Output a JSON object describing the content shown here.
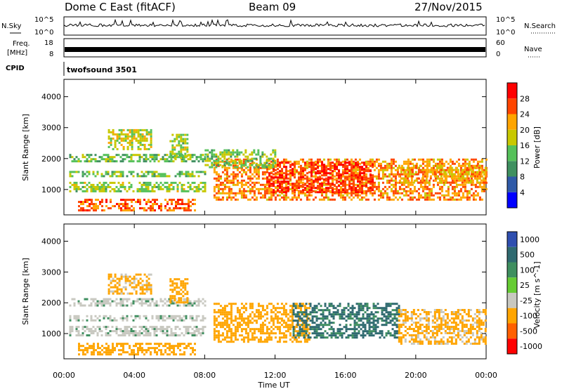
{
  "header": {
    "title": "Dome C East (fitACF)",
    "beam": "Beam 09",
    "date": "27/Nov/2015"
  },
  "top_panels": {
    "nsky_label": "N.Sky",
    "nsearch_label": "N.Search",
    "nsky_ticks": [
      "10^5",
      "10^0"
    ],
    "nsearch_ticks": [
      "10^5",
      "10^0"
    ],
    "freq_label_line1": "Freq.",
    "freq_label_line2": "[MHz]",
    "freq_ticks": [
      "18",
      "8"
    ],
    "nave_label": "Nave",
    "nave_ticks": [
      "60",
      "0"
    ],
    "cpid_label": "CPID",
    "cpid_value": "twofsound 3501"
  },
  "colors": {
    "power": [
      "#0000ff",
      "#2f5aa8",
      "#3f9060",
      "#55c15a",
      "#c8c800",
      "#ffa500",
      "#ff4500",
      "#ff0000"
    ],
    "velocity": [
      "#2f4fb0",
      "#2f6a70",
      "#3f8f60",
      "#66cc33",
      "#c8c8c0",
      "#ffa500",
      "#ff6000",
      "#ff0000"
    ],
    "ground_scatter": "#bbbbbb"
  },
  "chart_data": [
    {
      "type": "heatmap",
      "title": "",
      "xlabel": "Time UT",
      "ylabel": "Slant Range [km]",
      "x_ticks": [
        "00:00",
        "04:00",
        "08:00",
        "12:00",
        "16:00",
        "20:00",
        "00:00"
      ],
      "xlim_hours": [
        0,
        24
      ],
      "y_ticks": [
        1000,
        2000,
        3000,
        4000
      ],
      "ylim": [
        180,
        4560
      ],
      "colorbar": {
        "label": "Power [dB]",
        "ticks": [
          "4",
          "8",
          "12",
          "16",
          "20",
          "24",
          "28"
        ],
        "range": [
          0,
          30
        ]
      },
      "regions": [
        {
          "t0": 0.3,
          "t1": 8.0,
          "r0": 950,
          "r1": 1250,
          "value": 15
        },
        {
          "t0": 0.3,
          "t1": 8.0,
          "r0": 1400,
          "r1": 1600,
          "value": 14
        },
        {
          "t0": 0.3,
          "t1": 8.0,
          "r0": 1900,
          "r1": 2150,
          "value": 13
        },
        {
          "t0": 0.8,
          "t1": 7.5,
          "r0": 350,
          "r1": 700,
          "value": 24
        },
        {
          "t0": 2.5,
          "t1": 5.0,
          "r0": 2300,
          "r1": 2950,
          "value": 17
        },
        {
          "t0": 6.0,
          "t1": 7.0,
          "r0": 2000,
          "r1": 2800,
          "value": 15
        },
        {
          "t0": 8.5,
          "t1": 24.0,
          "r0": 700,
          "r1": 2000,
          "value": 22
        },
        {
          "t0": 11.5,
          "t1": 17.5,
          "r0": 900,
          "r1": 1900,
          "value": 26
        },
        {
          "t0": 8.0,
          "t1": 12.0,
          "r0": 1700,
          "r1": 2300,
          "value": 14
        },
        {
          "t0": 19.0,
          "t1": 24.0,
          "r0": 1200,
          "r1": 1800,
          "value": 20
        }
      ]
    },
    {
      "type": "heatmap",
      "title": "",
      "xlabel": "Time UT",
      "ylabel": "Slant Range [km]",
      "x_ticks": [
        "00:00",
        "04:00",
        "08:00",
        "12:00",
        "16:00",
        "20:00",
        "00:00"
      ],
      "xlim_hours": [
        0,
        24
      ],
      "y_ticks": [
        1000,
        2000,
        3000,
        4000
      ],
      "ylim": [
        180,
        4560
      ],
      "colorbar": {
        "label": "Velocity [m s^-1]",
        "ticks": [
          "1000",
          "500",
          "100",
          "25",
          "-25",
          "-100",
          "-500",
          "-1000"
        ]
      },
      "regions": [
        {
          "t0": 0.3,
          "t1": 8.0,
          "r0": 950,
          "r1": 1250,
          "value": 0
        },
        {
          "t0": 0.3,
          "t1": 8.0,
          "r0": 1400,
          "r1": 1600,
          "value": 0
        },
        {
          "t0": 0.3,
          "t1": 8.0,
          "r0": 1900,
          "r1": 2150,
          "value": 0
        },
        {
          "t0": 0.8,
          "t1": 7.5,
          "r0": 350,
          "r1": 700,
          "value": -150
        },
        {
          "t0": 2.5,
          "t1": 5.0,
          "r0": 2300,
          "r1": 2950,
          "value": -120
        },
        {
          "t0": 6.0,
          "t1": 7.0,
          "r0": 2000,
          "r1": 2800,
          "value": -200
        },
        {
          "t0": 8.5,
          "t1": 14.0,
          "r0": 700,
          "r1": 2000,
          "value": -150
        },
        {
          "t0": 13.0,
          "t1": 19.0,
          "r0": 900,
          "r1": 2000,
          "value": 120
        },
        {
          "t0": 19.0,
          "t1": 24.0,
          "r0": 700,
          "r1": 1800,
          "value": -120
        }
      ]
    }
  ]
}
